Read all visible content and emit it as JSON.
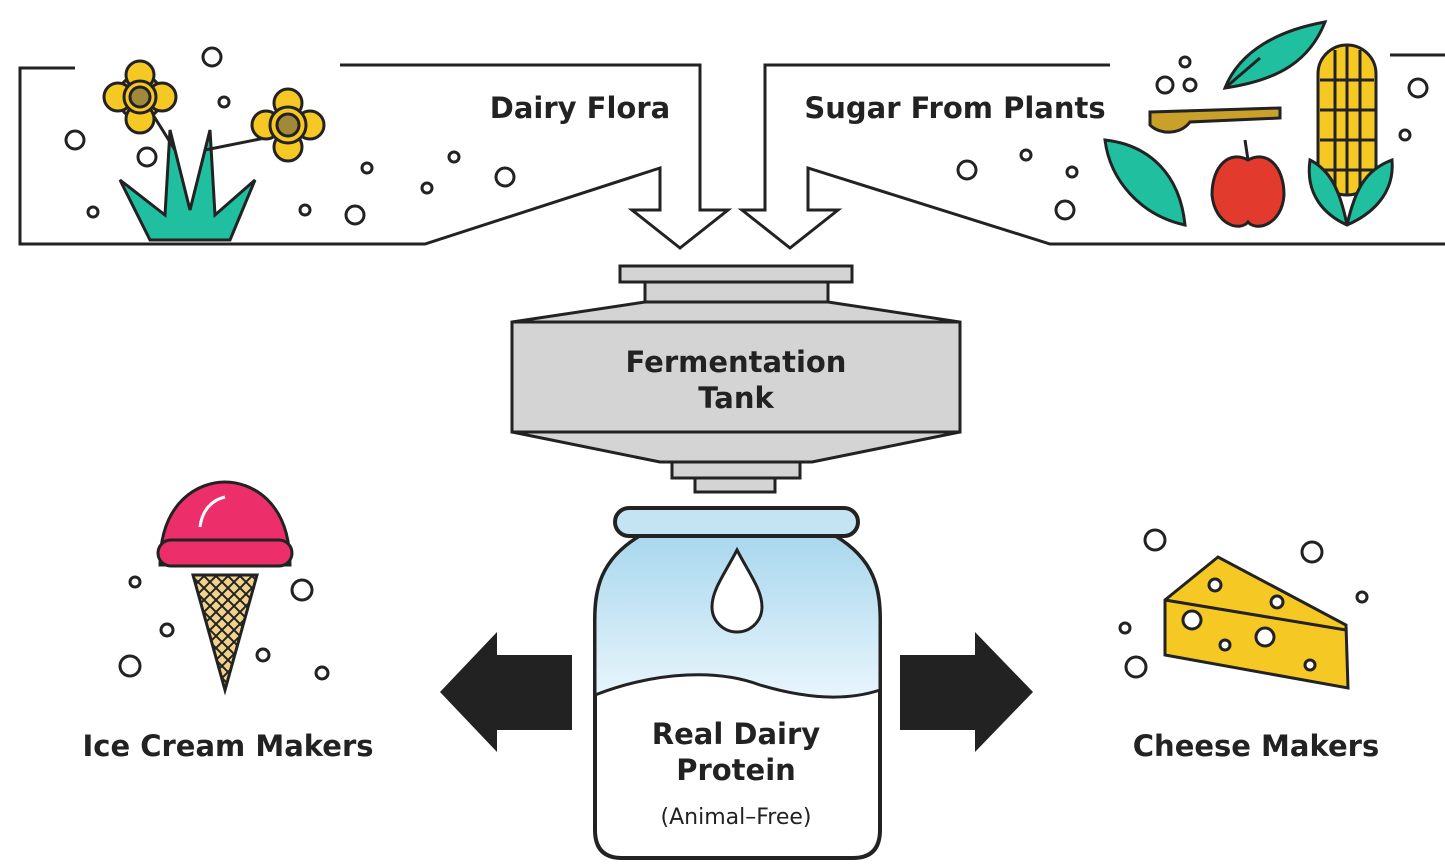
{
  "inputs": [
    {
      "label": "Dairy Flora"
    },
    {
      "label": "Sugar From Plants"
    }
  ],
  "process": {
    "label_lines": [
      "Fermentation",
      "Tank"
    ]
  },
  "product": {
    "label_lines": [
      "Real Dairy",
      "Protein"
    ],
    "note": "(Animal–Free)"
  },
  "outputs": [
    {
      "label": "Ice Cream Makers"
    },
    {
      "label": "Cheese Makers"
    }
  ]
}
